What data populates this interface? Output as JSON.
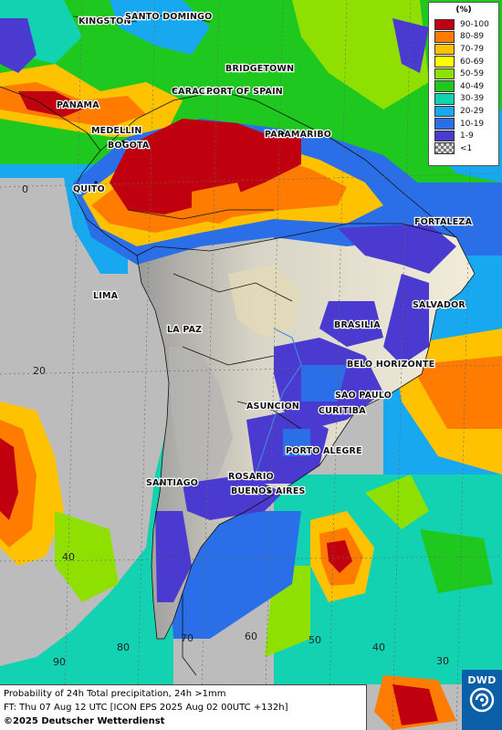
{
  "legend": {
    "unit": "(%)",
    "items": [
      {
        "label": "90-100",
        "color": "#c0000e"
      },
      {
        "label": "80-89",
        "color": "#ff7c00"
      },
      {
        "label": "70-79",
        "color": "#ffc200"
      },
      {
        "label": "60-69",
        "color": "#ffff00"
      },
      {
        "label": "50-59",
        "color": "#8fe000"
      },
      {
        "label": "40-49",
        "color": "#1ec81e"
      },
      {
        "label": "30-39",
        "color": "#13d2b2"
      },
      {
        "label": "20-29",
        "color": "#18a8f0"
      },
      {
        "label": "10-19",
        "color": "#2a6ee8"
      },
      {
        "label": "1-9",
        "color": "#4a3ad0"
      },
      {
        "label": "<1",
        "color": "checker"
      }
    ]
  },
  "info": {
    "line1": "Probability of 24h Total precipitation, 24h >1mm",
    "line2": "FT: Thu 07 Aug 12 UTC [ICON EPS 2025 Aug 02 00UTC +132h]",
    "copyright": "©2025 Deutscher Wetterdienst"
  },
  "logo": {
    "text": "DWD"
  },
  "cities": [
    {
      "name": "KINGSTON"
    },
    {
      "name": "SANTO DOMINGO"
    },
    {
      "name": "BRIDGETOWN"
    },
    {
      "name": "CARACAS"
    },
    {
      "name": "PORT OF SPAIN"
    },
    {
      "name": "PANAMA"
    },
    {
      "name": "MEDELLIN"
    },
    {
      "name": "BOGOTA"
    },
    {
      "name": "PARAMARIBO"
    },
    {
      "name": "QUITO"
    },
    {
      "name": "FORTALEZA"
    },
    {
      "name": "LIMA"
    },
    {
      "name": "SALVADOR"
    },
    {
      "name": "LA PAZ"
    },
    {
      "name": "BRASILIA"
    },
    {
      "name": "BELO HORIZONTE"
    },
    {
      "name": "SAO PAULO"
    },
    {
      "name": "ASUNCION"
    },
    {
      "name": "CURITIBA"
    },
    {
      "name": "PORTO ALEGRE"
    },
    {
      "name": "ROSARIO"
    },
    {
      "name": "BUENOS AIRES"
    },
    {
      "name": "SANTIAGO"
    }
  ],
  "grid_labels": [
    "0",
    "20",
    "40",
    "90",
    "80",
    "70",
    "60",
    "50",
    "40",
    "30"
  ]
}
